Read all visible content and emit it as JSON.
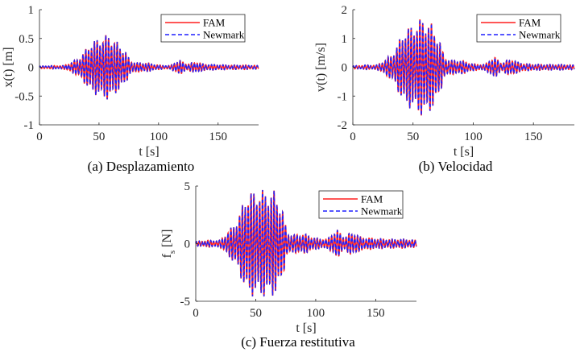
{
  "chart_data": [
    {
      "id": "a",
      "type": "line",
      "caption": "(a) Desplazamiento",
      "xlabel": "t [s]",
      "ylabel": "x(t) [m]",
      "xlim": [
        0,
        184
      ],
      "ylim": [
        -1,
        1
      ],
      "xticks": [
        0,
        50,
        100,
        150
      ],
      "yticks": [
        -1,
        -0.5,
        0,
        0.5,
        1
      ],
      "ytick_labels": [
        "-1",
        "-0.5",
        "0",
        "0.5",
        "1"
      ],
      "legend": {
        "position": "top-right",
        "entries": [
          "FAM",
          "Newmark"
        ]
      },
      "series": [
        {
          "name": "FAM",
          "color": "#ff1f1f",
          "style": "solid"
        },
        {
          "name": "Newmark",
          "color": "#1f1fff",
          "style": "dashed"
        }
      ],
      "envelope": {
        "t": [
          0,
          10,
          20,
          28,
          35,
          42,
          50,
          58,
          65,
          72,
          76,
          82,
          90,
          100,
          110,
          114,
          118,
          124,
          128,
          133,
          137,
          145,
          160,
          175,
          184
        ],
        "amp": [
          0.02,
          0.03,
          0.03,
          0.1,
          0.2,
          0.42,
          0.52,
          0.58,
          0.45,
          0.3,
          0.12,
          0.08,
          0.08,
          0.04,
          0.03,
          0.1,
          0.12,
          0.06,
          0.08,
          0.1,
          0.06,
          0.05,
          0.04,
          0.04,
          0.03
        ]
      },
      "period_s": 2.4
    },
    {
      "id": "b",
      "type": "line",
      "caption": "(b) Velocidad",
      "xlabel": "t [s]",
      "ylabel": "v(t) [m/s]",
      "xlim": [
        0,
        184
      ],
      "ylim": [
        -2,
        2
      ],
      "xticks": [
        0,
        50,
        100,
        150
      ],
      "yticks": [
        -2,
        -1,
        0,
        1,
        2
      ],
      "ytick_labels": [
        "-2",
        "-1",
        "0",
        "1",
        "2"
      ],
      "legend": {
        "position": "top-right",
        "entries": [
          "FAM",
          "Newmark"
        ]
      },
      "series": [
        {
          "name": "FAM",
          "color": "#ff1f1f",
          "style": "solid"
        },
        {
          "name": "Newmark",
          "color": "#1f1fff",
          "style": "dashed"
        }
      ],
      "envelope": {
        "t": [
          0,
          10,
          20,
          28,
          35,
          42,
          50,
          58,
          65,
          72,
          76,
          82,
          90,
          100,
          110,
          114,
          118,
          124,
          128,
          133,
          137,
          145,
          160,
          175,
          184
        ],
        "amp": [
          0.05,
          0.08,
          0.08,
          0.3,
          0.6,
          1.3,
          1.5,
          1.75,
          1.55,
          1.0,
          0.35,
          0.25,
          0.25,
          0.12,
          0.1,
          0.3,
          0.35,
          0.15,
          0.25,
          0.3,
          0.18,
          0.12,
          0.1,
          0.1,
          0.08
        ]
      },
      "period_s": 2.4
    },
    {
      "id": "c",
      "type": "line",
      "caption": "(c) Fuerza restitutiva",
      "xlabel": "t [s]",
      "ylabel": "f_s [N]",
      "ylabel_main": "f",
      "ylabel_sub": "s",
      "ylabel_unit": " [N]",
      "xlim": [
        0,
        184
      ],
      "ylim": [
        -5,
        5
      ],
      "xticks": [
        0,
        50,
        100,
        150
      ],
      "yticks": [
        -5,
        0,
        5
      ],
      "ytick_labels": [
        "-5",
        "0",
        "5"
      ],
      "legend": {
        "position": "top-right",
        "entries": [
          "FAM",
          "Newmark"
        ]
      },
      "series": [
        {
          "name": "FAM",
          "color": "#ff1f1f",
          "style": "solid"
        },
        {
          "name": "Newmark",
          "color": "#1f1fff",
          "style": "dashed"
        }
      ],
      "envelope": {
        "t": [
          0,
          10,
          20,
          28,
          35,
          42,
          50,
          58,
          65,
          72,
          76,
          82,
          90,
          100,
          110,
          114,
          118,
          124,
          128,
          133,
          137,
          145,
          160,
          175,
          184
        ],
        "amp": [
          0.2,
          0.3,
          0.3,
          1.2,
          2.2,
          4.4,
          4.7,
          4.7,
          4.7,
          3.3,
          1.0,
          0.8,
          0.9,
          0.5,
          0.4,
          1.0,
          1.2,
          0.6,
          0.9,
          1.0,
          0.6,
          0.5,
          0.4,
          0.4,
          0.3
        ]
      },
      "period_s": 2.4
    }
  ]
}
